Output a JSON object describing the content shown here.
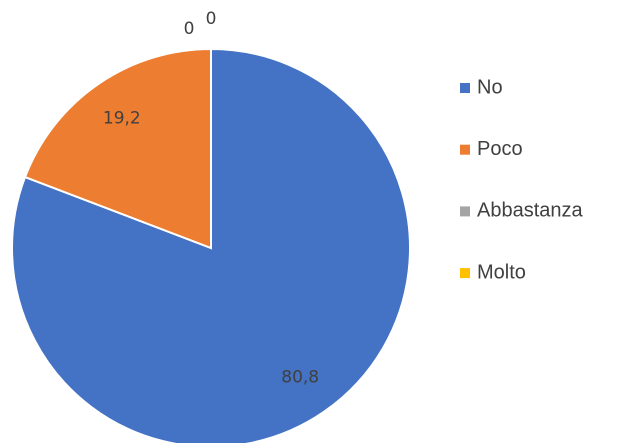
{
  "chart_data": {
    "type": "pie",
    "categories": [
      "No",
      "Poco",
      "Abbastanza",
      "Molto"
    ],
    "values": [
      80.8,
      19.2,
      0,
      0
    ],
    "value_labels": [
      "80,8",
      "19,2",
      "0",
      "0"
    ],
    "colors": [
      "#4472c4",
      "#ed7d31",
      "#a5a5a5",
      "#ffc000"
    ],
    "legend": "right"
  }
}
